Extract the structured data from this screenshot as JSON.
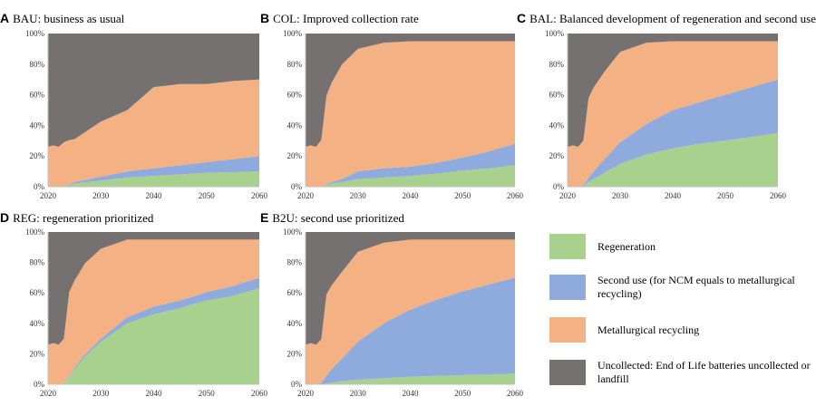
{
  "colors": {
    "regeneration": "#a9d18e",
    "second_use": "#8faadc",
    "metallurgical": "#f4b183",
    "uncollected": "#767171"
  },
  "legend": [
    {
      "key": "regeneration",
      "label": "Regeneration"
    },
    {
      "key": "second_use",
      "label": "Second use (for NCM equals to metallurgical recycling)"
    },
    {
      "key": "metallurgical",
      "label": "Metallurgical recycling"
    },
    {
      "key": "uncollected",
      "label": "Uncollected: End of Life batteries uncollected or landfill"
    }
  ],
  "chart_data": [
    {
      "type": "area",
      "letter": "A",
      "title": "BAU: business as usual",
      "stacked": true,
      "x": [
        2020,
        2021,
        2022,
        2023,
        2024,
        2025,
        2030,
        2035,
        2040,
        2045,
        2050,
        2055,
        2060
      ],
      "xticks": [
        2020,
        2030,
        2040,
        2050,
        2060
      ],
      "yticks": [
        "0%",
        "20%",
        "40%",
        "60%",
        "80%",
        "100%"
      ],
      "ylim": [
        0,
        100
      ],
      "series": [
        {
          "name": "Regeneration",
          "values": [
            0,
            0,
            0,
            0.5,
            1,
            2,
            4,
            6,
            7,
            8,
            9,
            9.5,
            10
          ]
        },
        {
          "name": "Second use (for NCM equals to metallurgical recycling)",
          "values": [
            0,
            0,
            0,
            0,
            0.5,
            1,
            2.5,
            4,
            5,
            6,
            7,
            8.5,
            10
          ]
        },
        {
          "name": "Metallurgical recycling",
          "values": [
            26,
            27,
            26,
            28.5,
            29,
            28,
            36,
            40,
            53,
            53,
            51,
            51,
            50
          ]
        },
        {
          "name": "Uncollected: End of Life batteries uncollected or landfill",
          "values": [
            74,
            73,
            74,
            71,
            69.5,
            69,
            57.5,
            50,
            35,
            33,
            33,
            31,
            30
          ]
        }
      ]
    },
    {
      "type": "area",
      "letter": "B",
      "title": "COL: Improved collection rate",
      "stacked": true,
      "x": [
        2020,
        2021,
        2022,
        2023,
        2024,
        2025,
        2027,
        2030,
        2035,
        2040,
        2045,
        2050,
        2055,
        2060
      ],
      "xticks": [
        2020,
        2030,
        2040,
        2050,
        2060
      ],
      "yticks": [
        "0%",
        "20%",
        "40%",
        "60%",
        "80%",
        "100%"
      ],
      "ylim": [
        0,
        100
      ],
      "series": [
        {
          "name": "Regeneration",
          "values": [
            0,
            0,
            0,
            0.5,
            1,
            2,
            3,
            5,
            6,
            7,
            8.5,
            10.5,
            12,
            14
          ]
        },
        {
          "name": "Second use (for NCM equals to metallurgical recycling)",
          "values": [
            0,
            0,
            0,
            0,
            0.5,
            1,
            2,
            5,
            6,
            6,
            7,
            8.5,
            11,
            14
          ]
        },
        {
          "name": "Metallurgical recycling",
          "values": [
            26,
            27,
            26,
            30,
            58,
            65,
            75,
            80,
            82,
            82,
            79.5,
            76,
            72,
            67
          ]
        },
        {
          "name": "Uncollected: End of Life batteries uncollected or landfill",
          "values": [
            74,
            73,
            74,
            69.5,
            40.5,
            32,
            20,
            10,
            6,
            5,
            5,
            5,
            5,
            5
          ]
        }
      ]
    },
    {
      "type": "area",
      "letter": "C",
      "title": "BAL: Balanced development of regeneration and second use",
      "stacked": true,
      "x": [
        2020,
        2021,
        2022,
        2023,
        2024,
        2025,
        2027,
        2030,
        2035,
        2040,
        2045,
        2050,
        2055,
        2060
      ],
      "xticks": [
        2020,
        2030,
        2040,
        2050,
        2060
      ],
      "yticks": [
        "0%",
        "20%",
        "40%",
        "60%",
        "80%",
        "100%"
      ],
      "ylim": [
        0,
        100
      ],
      "series": [
        {
          "name": "Regeneration",
          "values": [
            0,
            0,
            0,
            0.5,
            3,
            5,
            9,
            15,
            21,
            25,
            28,
            30,
            32.5,
            35
          ]
        },
        {
          "name": "Second use (for NCM equals to metallurgical recycling)",
          "values": [
            0,
            0,
            0,
            0.5,
            3,
            5,
            9,
            14,
            20,
            25,
            27,
            30,
            32.5,
            35
          ]
        },
        {
          "name": "Metallurgical recycling",
          "values": [
            26,
            27,
            26,
            29,
            52,
            55,
            57,
            59,
            53,
            45,
            40,
            35,
            30,
            25
          ]
        },
        {
          "name": "Uncollected: End of Life batteries uncollected or landfill",
          "values": [
            74,
            73,
            74,
            70,
            42,
            35,
            25,
            12,
            6,
            5,
            5,
            5,
            5,
            5
          ]
        }
      ]
    },
    {
      "type": "area",
      "letter": "D",
      "title": "REG: regeneration prioritized",
      "stacked": true,
      "x": [
        2020,
        2021,
        2022,
        2023,
        2024,
        2025,
        2027,
        2030,
        2035,
        2040,
        2045,
        2050,
        2055,
        2060
      ],
      "xticks": [
        2020,
        2030,
        2040,
        2050,
        2060
      ],
      "yticks": [
        "0%",
        "20%",
        "40%",
        "60%",
        "80%",
        "100%"
      ],
      "ylim": [
        0,
        100
      ],
      "series": [
        {
          "name": "Regeneration",
          "values": [
            0,
            0,
            0,
            1,
            5,
            10,
            18,
            28,
            40,
            46,
            50,
            55,
            58,
            63
          ]
        },
        {
          "name": "Second use (for NCM equals to metallurgical recycling)",
          "values": [
            0,
            0,
            0,
            0,
            0.5,
            1,
            1.5,
            2,
            4,
            5,
            5,
            5.5,
            6.5,
            7
          ]
        },
        {
          "name": "Metallurgical recycling",
          "values": [
            26,
            27,
            26,
            29,
            55,
            57,
            60,
            59,
            51,
            44,
            40,
            34.5,
            30.5,
            25
          ]
        },
        {
          "name": "Uncollected: End of Life batteries uncollected or landfill",
          "values": [
            74,
            73,
            74,
            70,
            39.5,
            32,
            20.5,
            11,
            5,
            5,
            5,
            5,
            5,
            5
          ]
        }
      ]
    },
    {
      "type": "area",
      "letter": "E",
      "title": "B2U: second use prioritized",
      "stacked": true,
      "x": [
        2020,
        2021,
        2022,
        2023,
        2024,
        2025,
        2027,
        2030,
        2035,
        2040,
        2045,
        2050,
        2055,
        2060
      ],
      "xticks": [
        2020,
        2030,
        2040,
        2050,
        2060
      ],
      "yticks": [
        "0%",
        "20%",
        "40%",
        "60%",
        "80%",
        "100%"
      ],
      "ylim": [
        0,
        100
      ],
      "series": [
        {
          "name": "Regeneration",
          "values": [
            0,
            0,
            0,
            0,
            0.5,
            1,
            2,
            3,
            4,
            5,
            5.5,
            6,
            6.5,
            7
          ]
        },
        {
          "name": "Second use (for NCM equals to metallurgical recycling)",
          "values": [
            0,
            0,
            0,
            1,
            5,
            9,
            15,
            25,
            36,
            44,
            50,
            55,
            59,
            63
          ]
        },
        {
          "name": "Metallurgical recycling",
          "values": [
            26,
            27,
            26,
            28.5,
            53.5,
            55,
            57,
            59,
            53,
            46,
            39.5,
            34,
            29.5,
            25
          ]
        },
        {
          "name": "Uncollected: End of Life batteries uncollected or landfill",
          "values": [
            74,
            73,
            74,
            70.5,
            41,
            35,
            26,
            13,
            7,
            5,
            5,
            5,
            5,
            5
          ]
        }
      ]
    }
  ]
}
